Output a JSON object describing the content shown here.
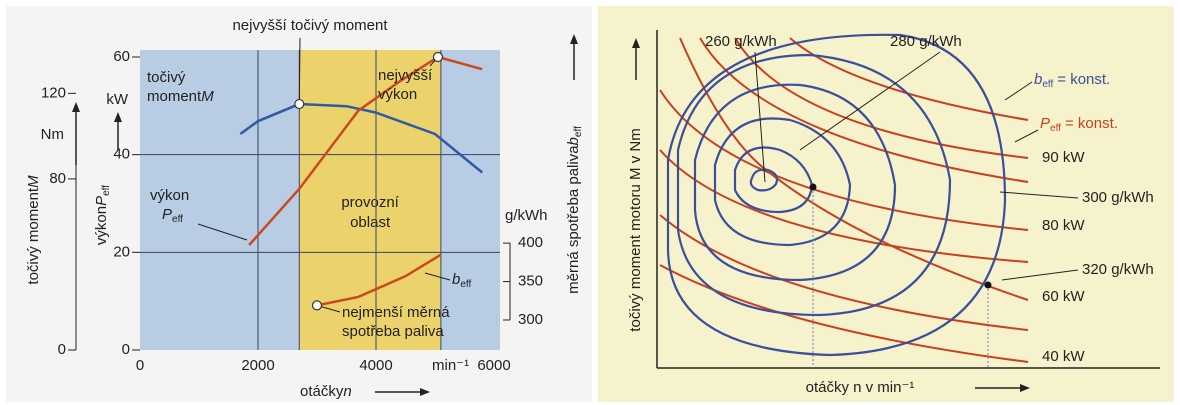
{
  "chart_data": [
    {
      "type": "line",
      "xlim": [
        0,
        6000
      ],
      "xticks": [
        0,
        2000,
        4000,
        6000
      ],
      "x_label": "otáčky",
      "x_label_symbol": "n",
      "x_unit": "min⁻¹",
      "ylim": [
        0,
        60
      ],
      "yticks": [
        0,
        20,
        40,
        60
      ],
      "y_label": "výkon",
      "y_label_symbol": "P",
      "y_label_sub": "eff",
      "y_unit": "kW",
      "y2lim": [
        0,
        137
      ],
      "y2ticks": [
        0,
        80,
        120
      ],
      "y2_label": "točivý moment",
      "y2_label_symbol": "M",
      "y2_unit": "Nm",
      "y3lim": [
        261,
        642
      ],
      "y3ticks": [
        300,
        350,
        400
      ],
      "y3_label": "měrná spotřeba paliva",
      "y3_label_symbol": "b",
      "y3_label_sub": "eff",
      "y3_unit": "g/kWh",
      "grid": true,
      "operating_range": {
        "x": [
          2700,
          5100
        ],
        "label": [
          "provozní",
          "oblast"
        ],
        "color": "#ecd26a"
      },
      "plot_color": "#b8cce4",
      "series": [
        {
          "name": [
            "točivý",
            "moment"
          ],
          "symbol": "M",
          "axis": "y2",
          "color": "#2f5aa5",
          "x": [
            1700,
            2000,
            2700,
            3500,
            4000,
            5000,
            5800
          ],
          "values": [
            101,
            107,
            115,
            114,
            111,
            101,
            83
          ]
        },
        {
          "name": [
            "výkon"
          ],
          "symbol": "P",
          "sub": "eff",
          "axis": "y",
          "color": "#c84a1e",
          "x": [
            1850,
            2700,
            3700,
            4400,
            5050,
            5800
          ],
          "values": [
            21.5,
            33,
            49,
            55,
            60,
            57.5
          ]
        },
        {
          "symbol": "b",
          "sub": "eff",
          "axis": "y3",
          "color": "#c84a1e",
          "x": [
            3000,
            3700,
            4500,
            5100
          ],
          "values": [
            319,
            330,
            357,
            385
          ]
        }
      ],
      "annotations": [
        [
          "nejvyšší točivý moment"
        ],
        [
          "nejvyšší",
          "výkon"
        ],
        [
          "nejmenší měrná",
          "spotřeba paliva"
        ]
      ]
    },
    {
      "type": "contour",
      "x_label": "otáčky n v min⁻¹",
      "y_label": "točivý moment motoru M v Nm",
      "fuel_labels": [
        "260 g/kWh",
        "280 g/kWh",
        "300 g/kWh",
        "320 g/kWh"
      ],
      "power_labels": [
        "90 kW",
        "80 kW",
        "60 kW",
        "40 kW"
      ],
      "legend": [
        {
          "symbol": "b",
          "sub": "eff",
          "text": "= konst.",
          "color": "#3b4f9a"
        },
        {
          "symbol": "P",
          "sub": "eff",
          "text": "= konst.",
          "color": "#c8401e"
        }
      ]
    }
  ]
}
